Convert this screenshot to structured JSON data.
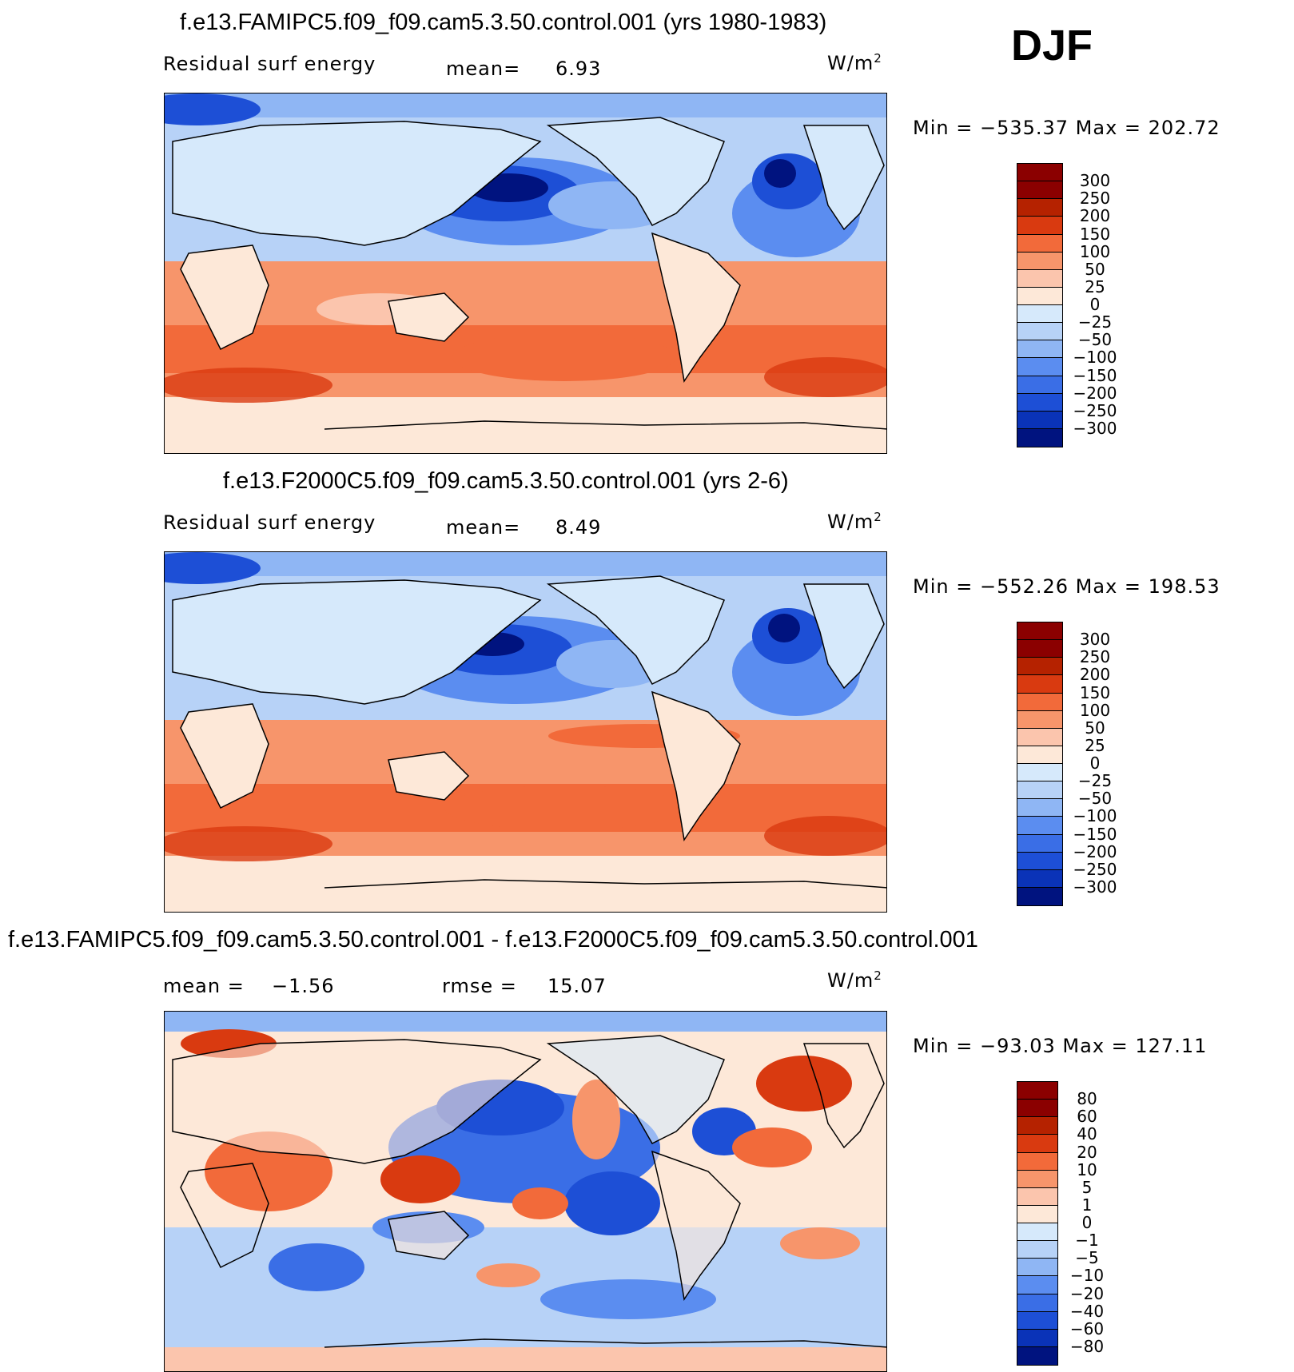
{
  "season": "DJF",
  "panels": [
    {
      "title": "f.e13.FAMIPC5.f09_f09.cam5.3.50.control.001 (yrs 1980-1983)",
      "left_label": "Residual surf energy",
      "center_label": "mean=",
      "center_value": "6.93",
      "units": "W/m",
      "units_sup": "2",
      "minmax": "Min = −535.37 Max = 202.72",
      "colorbar_labels": [
        "300",
        "250",
        "200",
        "150",
        "100",
        "50",
        "25",
        "0",
        "−25",
        "−50",
        "−100",
        "−150",
        "−200",
        "−250",
        "−300"
      ],
      "colors": [
        "#8b0000",
        "#b52200",
        "#d93a10",
        "#f26a3a",
        "#f7956b",
        "#fbc5ad",
        "#fde8d8",
        "#d6e9fb",
        "#b7d2f7",
        "#8fb6f4",
        "#5b8df0",
        "#3a6ee6",
        "#1d4fd6",
        "#0a33b8",
        "#00137f"
      ]
    },
    {
      "title": "f.e13.F2000C5.f09_f09.cam5.3.50.control.001 (yrs 2-6)",
      "left_label": "Residual surf energy",
      "center_label": "mean=",
      "center_value": "8.49",
      "units": "W/m",
      "units_sup": "2",
      "minmax": "Min = −552.26 Max = 198.53",
      "colorbar_labels": [
        "300",
        "250",
        "200",
        "150",
        "100",
        "50",
        "25",
        "0",
        "−25",
        "−50",
        "−100",
        "−150",
        "−200",
        "−250",
        "−300"
      ],
      "colors": [
        "#8b0000",
        "#b52200",
        "#d93a10",
        "#f26a3a",
        "#f7956b",
        "#fbc5ad",
        "#fde8d8",
        "#d6e9fb",
        "#b7d2f7",
        "#8fb6f4",
        "#5b8df0",
        "#3a6ee6",
        "#1d4fd6",
        "#0a33b8",
        "#00137f"
      ]
    },
    {
      "title": "f.e13.FAMIPC5.f09_f09.cam5.3.50.control.001 - f.e13.F2000C5.f09_f09.cam5.3.50.control.001",
      "left_label": "mean =",
      "left_value": "−1.56",
      "center_label": "rmse =",
      "center_value": "15.07",
      "units": "W/m",
      "units_sup": "2",
      "minmax": "Min = −93.03 Max = 127.11",
      "colorbar_labels": [
        "80",
        "60",
        "40",
        "20",
        "10",
        "5",
        "1",
        "0",
        "−1",
        "−5",
        "−10",
        "−20",
        "−40",
        "−60",
        "−80"
      ],
      "colors": [
        "#8b0000",
        "#b52200",
        "#d93a10",
        "#f26a3a",
        "#f7956b",
        "#fbc5ad",
        "#fde8d8",
        "#d6e9fb",
        "#b7d2f7",
        "#8fb6f4",
        "#5b8df0",
        "#3a6ee6",
        "#1d4fd6",
        "#0a33b8",
        "#00137f"
      ]
    }
  ],
  "chart_data": [
    {
      "type": "heatmap",
      "title": "f.e13.FAMIPC5.f09_f09.cam5.3.50.control.001 (yrs 1980-1983)",
      "variable": "Residual surf energy",
      "mean": 6.93,
      "min": -535.37,
      "max": 202.72,
      "units": "W/m2",
      "levels": [
        -300,
        -250,
        -200,
        -150,
        -100,
        -50,
        -25,
        0,
        25,
        50,
        100,
        150,
        200,
        250,
        300
      ]
    },
    {
      "type": "heatmap",
      "title": "f.e13.F2000C5.f09_f09.cam5.3.50.control.001 (yrs 2-6)",
      "variable": "Residual surf energy",
      "mean": 8.49,
      "min": -552.26,
      "max": 198.53,
      "units": "W/m2",
      "levels": [
        -300,
        -250,
        -200,
        -150,
        -100,
        -50,
        -25,
        0,
        25,
        50,
        100,
        150,
        200,
        250,
        300
      ]
    },
    {
      "type": "heatmap",
      "title": "f.e13.FAMIPC5.f09_f09.cam5.3.50.control.001 - f.e13.F2000C5.f09_f09.cam5.3.50.control.001",
      "mean": -1.56,
      "rmse": 15.07,
      "min": -93.03,
      "max": 127.11,
      "units": "W/m2",
      "levels": [
        -80,
        -60,
        -40,
        -20,
        -10,
        -5,
        -1,
        0,
        1,
        5,
        10,
        20,
        40,
        60,
        80
      ]
    }
  ]
}
